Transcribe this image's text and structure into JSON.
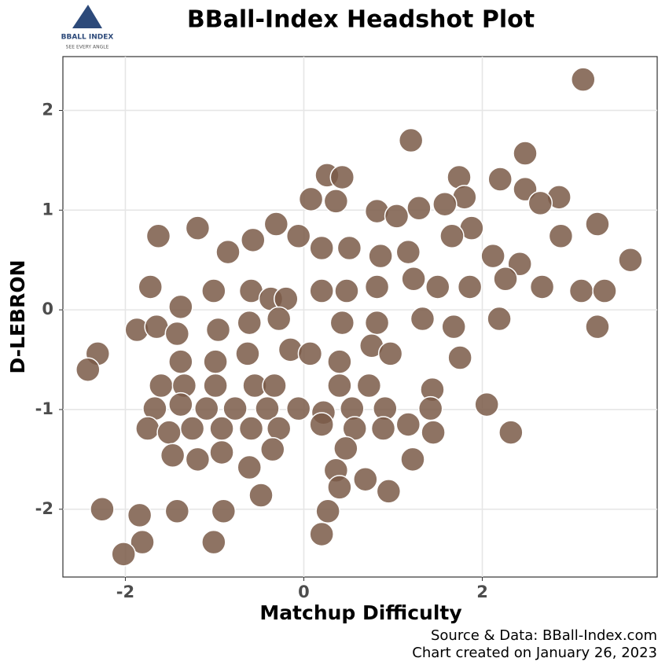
{
  "logo": {
    "name": "BBALL INDEX",
    "tagline": "SEE EVERY ANGLE"
  },
  "chart_data": {
    "type": "scatter",
    "title": "BBall-Index Headshot Plot",
    "x_label": "Matchup Difficulty",
    "y_label": "D-LEBRON",
    "caption": [
      "Source & Data: BBall-Index.com",
      "Chart created on January 26, 2023"
    ],
    "xlim": [
      -2.7,
      3.96
    ],
    "ylim": [
      -2.68,
      2.54
    ],
    "xticks": [
      -2,
      0,
      2
    ],
    "yticks": [
      -2,
      -1,
      0,
      1,
      2
    ],
    "grid": true,
    "color": "#7a5a48",
    "x": [
      3.13,
      1.2,
      2.48,
      0.26,
      0.43,
      1.74,
      2.2,
      0.08,
      0.36,
      1.8,
      2.48,
      2.86,
      0.82,
      1.04,
      1.29,
      1.58,
      1.88,
      2.65,
      3.29,
      -1.19,
      -1.63,
      -0.57,
      -0.31,
      -0.85,
      -0.06,
      0.2,
      0.51,
      0.86,
      1.17,
      1.66,
      2.12,
      2.42,
      2.88,
      3.66,
      -1.72,
      -1.38,
      -1.01,
      -0.59,
      -0.37,
      -0.2,
      0.2,
      0.48,
      0.82,
      1.23,
      1.5,
      1.86,
      2.26,
      2.67,
      3.11,
      3.37,
      -1.87,
      -1.65,
      -1.42,
      -0.96,
      -0.61,
      -0.28,
      0.43,
      0.82,
      1.33,
      1.68,
      2.19,
      3.29,
      -2.31,
      -2.42,
      -1.38,
      -0.99,
      -0.63,
      -0.15,
      0.07,
      0.4,
      0.76,
      0.97,
      1.75,
      -1.6,
      -1.34,
      -0.99,
      -0.55,
      -0.33,
      0.4,
      0.73,
      1.44,
      -1.67,
      -1.38,
      -1.09,
      -0.77,
      -0.41,
      -0.06,
      0.22,
      0.54,
      0.91,
      1.42,
      2.05,
      -1.75,
      -1.51,
      -1.25,
      -0.92,
      -0.59,
      -0.28,
      0.2,
      0.57,
      0.89,
      1.17,
      1.45,
      2.32,
      -1.47,
      -1.19,
      -0.92,
      -0.35,
      0.47,
      1.22,
      0.36,
      -0.61,
      0.69,
      0.4,
      0.95,
      -0.48,
      -2.26,
      -1.84,
      -1.42,
      -0.9,
      0.27,
      0.2,
      -1.01,
      -1.81,
      -2.02
    ],
    "values": [
      2.31,
      1.7,
      1.57,
      1.35,
      1.33,
      1.33,
      1.31,
      1.11,
      1.09,
      1.13,
      1.21,
      1.13,
      0.99,
      0.94,
      1.02,
      1.06,
      0.82,
      1.07,
      0.86,
      0.82,
      0.74,
      0.7,
      0.86,
      0.58,
      0.74,
      0.62,
      0.62,
      0.54,
      0.58,
      0.74,
      0.54,
      0.46,
      0.74,
      0.5,
      0.23,
      0.03,
      0.19,
      0.19,
      0.11,
      0.11,
      0.19,
      0.19,
      0.23,
      0.31,
      0.23,
      0.23,
      0.31,
      0.23,
      0.19,
      0.19,
      -0.2,
      -0.17,
      -0.24,
      -0.2,
      -0.13,
      -0.09,
      -0.13,
      -0.13,
      -0.09,
      -0.17,
      -0.09,
      -0.17,
      -0.44,
      -0.6,
      -0.52,
      -0.52,
      -0.44,
      -0.4,
      -0.44,
      -0.52,
      -0.36,
      -0.44,
      -0.48,
      -0.76,
      -0.76,
      -0.76,
      -0.76,
      -0.76,
      -0.76,
      -0.76,
      -0.8,
      -0.99,
      -0.95,
      -0.99,
      -0.99,
      -0.99,
      -0.99,
      -1.03,
      -0.99,
      -0.99,
      -0.99,
      -0.95,
      -1.19,
      -1.23,
      -1.19,
      -1.19,
      -1.19,
      -1.19,
      -1.15,
      -1.19,
      -1.19,
      -1.15,
      -1.23,
      -1.23,
      -1.46,
      -1.5,
      -1.43,
      -1.4,
      -1.39,
      -1.5,
      -1.61,
      -1.58,
      -1.7,
      -1.78,
      -1.82,
      -1.86,
      -2.0,
      -2.06,
      -2.02,
      -2.02,
      -2.02,
      -2.25,
      -2.33,
      -2.33,
      -2.45
    ]
  }
}
